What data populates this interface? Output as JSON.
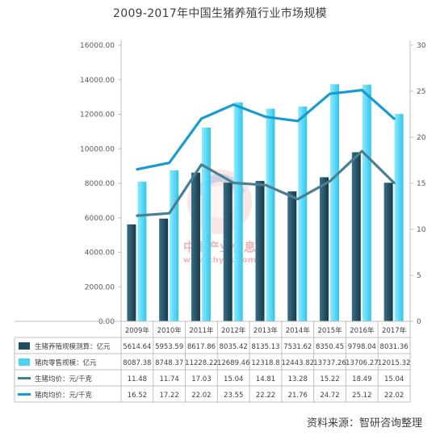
{
  "chart_data": {
    "type": "bar",
    "title": "2009-2017年中国生猪养殖行业市场规模",
    "categories": [
      "2009年",
      "2010年",
      "2011年",
      "2012年",
      "2013年",
      "2014年",
      "2015年",
      "2016年",
      "2017年"
    ],
    "left_axis": {
      "ylim": [
        0,
        16000
      ],
      "ticks": [
        "0.00",
        "2000.00",
        "4000.00",
        "6000.00",
        "8000.00",
        "10000.00",
        "12000.00",
        "14000.00",
        "16000.00"
      ]
    },
    "right_axis": {
      "ylim": [
        0,
        30
      ],
      "ticks": [
        "0",
        "5",
        "10",
        "15",
        "20",
        "25",
        "30"
      ]
    },
    "series": [
      {
        "name": "生猪养殖规模测算：亿元",
        "type": "bar",
        "axis": "left",
        "color": "#1f4e63",
        "values": [
          5614.64,
          5953.59,
          8617.86,
          8035.42,
          8135.13,
          7531.62,
          8350.45,
          9798.04,
          8031.36
        ],
        "labels": [
          "5614.64",
          "5953.59",
          "8617.86",
          "8035.42",
          "8135.13",
          "7531.62",
          "8350.45",
          "9798.04",
          "8031.36"
        ]
      },
      {
        "name": "猪肉零售规模：亿元",
        "type": "bar",
        "axis": "left",
        "color": "#4dd2f0",
        "values": [
          8087.38,
          8748.37,
          11228.22,
          12689.46,
          12318.8,
          12443.82,
          13737.26,
          13706.27,
          12015.32
        ],
        "labels": [
          "8087.38",
          "8748.37",
          "11228.22",
          "12689.46",
          "12318.8",
          "12443.82",
          "13737.26",
          "13706.27",
          "12015.32"
        ]
      },
      {
        "name": "生猪均价：元/千克",
        "type": "line",
        "axis": "right",
        "color": "#4a7f91",
        "values": [
          11.48,
          11.74,
          17.03,
          15.04,
          14.81,
          13.28,
          15.22,
          18.49,
          15.04
        ],
        "labels": [
          "11.48",
          "11.74",
          "17.03",
          "15.04",
          "14.81",
          "13.28",
          "15.22",
          "18.49",
          "15.04"
        ]
      },
      {
        "name": "猪肉均价：元/千克",
        "type": "line",
        "axis": "right",
        "color": "#1a9bd0",
        "values": [
          16.52,
          17.22,
          22.02,
          23.55,
          22.22,
          21.76,
          24.72,
          25.12,
          22.02
        ],
        "labels": [
          "16.52",
          "17.22",
          "22.02",
          "23.55",
          "22.22",
          "21.76",
          "24.72",
          "25.12",
          "22.02"
        ]
      }
    ],
    "grid": false,
    "legend": "data-table-below"
  },
  "watermark": {
    "line1": "中国产业信息",
    "line2": "www.chyxx.com"
  },
  "source_text": "资料来源：智研咨询整理"
}
